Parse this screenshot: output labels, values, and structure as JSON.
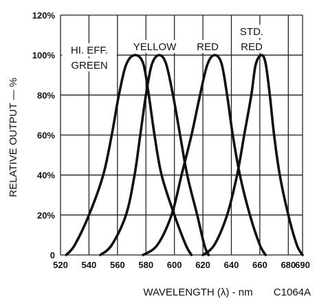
{
  "chart_data": {
    "type": "line",
    "xlabel": "WAVELENGTH (λ) - nm",
    "ylabel": "RELATIVE OUTPUT — %",
    "figure_code": "C1064A",
    "xlim": [
      520,
      690
    ],
    "ylim": [
      0,
      120
    ],
    "x_ticks": [
      520,
      540,
      560,
      580,
      600,
      620,
      640,
      660,
      680,
      690
    ],
    "x_tick_labels": [
      "520",
      "540",
      "560",
      "580",
      "600",
      "620",
      "640",
      "660",
      "680",
      "690"
    ],
    "y_ticks": [
      0,
      20,
      40,
      60,
      80,
      100,
      120
    ],
    "y_tick_labels": [
      "0",
      "20%",
      "40%",
      "60%",
      "80%",
      "100%",
      "120%"
    ],
    "grid": true,
    "series": [
      {
        "name": "HI. EFF. GREEN",
        "label_lines": [
          "HI. EFF.",
          "GREEN"
        ],
        "points": [
          [
            524,
            0
          ],
          [
            530,
            5
          ],
          [
            540,
            20
          ],
          [
            550,
            40
          ],
          [
            556,
            60
          ],
          [
            561,
            80
          ],
          [
            566,
            95
          ],
          [
            572,
            100
          ],
          [
            578,
            96
          ],
          [
            582,
            80
          ],
          [
            586,
            60
          ],
          [
            591,
            40
          ],
          [
            600,
            20
          ],
          [
            608,
            5
          ],
          [
            612,
            0
          ]
        ]
      },
      {
        "name": "YELLOW",
        "label_lines": [
          "YELLOW"
        ],
        "points": [
          [
            548,
            0
          ],
          [
            556,
            5
          ],
          [
            566,
            20
          ],
          [
            572,
            40
          ],
          [
            576,
            60
          ],
          [
            580,
            80
          ],
          [
            584,
            95
          ],
          [
            589,
            100
          ],
          [
            594,
            96
          ],
          [
            599,
            80
          ],
          [
            604,
            60
          ],
          [
            609,
            40
          ],
          [
            616,
            20
          ],
          [
            621,
            5
          ],
          [
            624,
            0
          ]
        ]
      },
      {
        "name": "RED",
        "label_lines": [
          "RED"
        ],
        "points": [
          [
            578,
            0
          ],
          [
            588,
            5
          ],
          [
            598,
            20
          ],
          [
            605,
            40
          ],
          [
            612,
            60
          ],
          [
            618,
            80
          ],
          [
            623,
            95
          ],
          [
            628,
            100
          ],
          [
            633,
            96
          ],
          [
            637,
            80
          ],
          [
            641,
            60
          ],
          [
            646,
            40
          ],
          [
            653,
            20
          ],
          [
            660,
            5
          ],
          [
            664,
            0
          ]
        ]
      },
      {
        "name": "STD. RED",
        "label_lines": [
          "STD.",
          "RED"
        ],
        "points": [
          [
            620,
            0
          ],
          [
            628,
            5
          ],
          [
            637,
            20
          ],
          [
            644,
            40
          ],
          [
            649,
            60
          ],
          [
            654,
            80
          ],
          [
            657,
            95
          ],
          [
            661,
            100
          ],
          [
            664,
            96
          ],
          [
            667,
            80
          ],
          [
            670,
            60
          ],
          [
            674,
            40
          ],
          [
            680,
            20
          ],
          [
            686,
            5
          ],
          [
            690,
            0
          ]
        ]
      }
    ]
  }
}
